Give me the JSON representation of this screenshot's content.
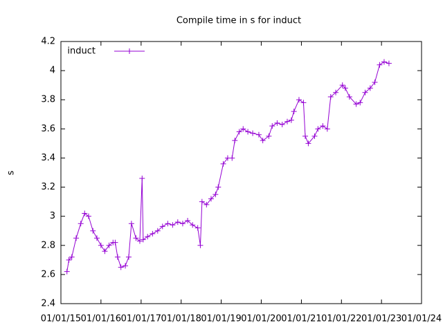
{
  "chart_data": {
    "type": "line",
    "title": "Compile time in s for induct",
    "y_label": "s",
    "x": [
      "2015-02-25",
      "2015-03-15",
      "2015-04-10",
      "2015-05-20",
      "2015-07-01",
      "2015-08-05",
      "2015-09-10",
      "2015-10-20",
      "2015-11-25",
      "2016-01-01",
      "2016-02-05",
      "2016-03-15",
      "2016-04-20",
      "2016-05-10",
      "2016-06-01",
      "2016-07-01",
      "2016-08-10",
      "2016-09-10",
      "2016-10-05",
      "2016-11-15",
      "2016-12-20",
      "2017-01-10",
      "2017-01-20",
      "2017-03-01",
      "2017-04-15",
      "2017-06-01",
      "2017-07-15",
      "2017-09-01",
      "2017-10-15",
      "2017-12-01",
      "2018-01-15",
      "2018-03-01",
      "2018-04-15",
      "2018-06-01",
      "2018-06-25",
      "2018-07-10",
      "2018-08-20",
      "2018-10-01",
      "2018-11-10",
      "2018-12-05",
      "2019-01-20",
      "2019-03-01",
      "2019-04-10",
      "2019-05-05",
      "2019-06-15",
      "2019-07-20",
      "2019-09-01",
      "2019-10-15",
      "2019-12-10",
      "2020-01-15",
      "2020-03-10",
      "2020-04-10",
      "2020-05-25",
      "2020-07-10",
      "2020-08-25",
      "2020-10-01",
      "2020-10-25",
      "2020-12-10",
      "2021-01-20",
      "2021-02-05",
      "2021-03-05",
      "2021-05-01",
      "2021-06-01",
      "2021-07-15",
      "2021-08-25",
      "2021-09-25",
      "2021-11-10",
      "2022-01-10",
      "2022-02-05",
      "2022-03-15",
      "2022-05-15",
      "2022-06-20",
      "2022-08-05",
      "2022-09-20",
      "2022-11-01",
      "2022-12-15",
      "2023-01-25",
      "2023-03-10"
    ],
    "series": [
      {
        "name": "induct",
        "color": "#9400d3",
        "values": [
          2.62,
          2.7,
          2.72,
          2.85,
          2.95,
          3.02,
          3.0,
          2.9,
          2.85,
          2.8,
          2.76,
          2.8,
          2.82,
          2.82,
          2.72,
          2.65,
          2.66,
          2.72,
          2.95,
          2.85,
          2.83,
          3.26,
          2.84,
          2.86,
          2.88,
          2.9,
          2.93,
          2.95,
          2.94,
          2.96,
          2.95,
          2.97,
          2.94,
          2.92,
          2.8,
          3.1,
          3.08,
          3.12,
          3.15,
          3.2,
          3.36,
          3.4,
          3.4,
          3.52,
          3.58,
          3.6,
          3.58,
          3.57,
          3.56,
          3.52,
          3.55,
          3.62,
          3.64,
          3.63,
          3.65,
          3.66,
          3.72,
          3.8,
          3.78,
          3.55,
          3.5,
          3.55,
          3.6,
          3.62,
          3.6,
          3.82,
          3.85,
          3.9,
          3.88,
          3.82,
          3.77,
          3.78,
          3.85,
          3.88,
          3.92,
          4.04,
          4.06,
          4.05
        ]
      }
    ],
    "xlim": [
      "2015-01-01",
      "2024-01-01"
    ],
    "xticks": [
      {
        "value": "2015-01-01",
        "label": "01/01/15"
      },
      {
        "value": "2016-01-01",
        "label": "01/01/16"
      },
      {
        "value": "2017-01-01",
        "label": "01/01/17"
      },
      {
        "value": "2018-01-01",
        "label": "01/01/18"
      },
      {
        "value": "2019-01-01",
        "label": "01/01/19"
      },
      {
        "value": "2020-01-01",
        "label": "01/01/20"
      },
      {
        "value": "2021-01-01",
        "label": "01/01/21"
      },
      {
        "value": "2022-01-01",
        "label": "01/01/22"
      },
      {
        "value": "2023-01-01",
        "label": "01/01/23"
      },
      {
        "value": "2024-01-01",
        "label": "01/01/24"
      }
    ],
    "ylim": [
      2.4,
      4.2
    ],
    "yticks": [
      2.4,
      2.6,
      2.8,
      3,
      3.2,
      3.4,
      3.6,
      3.8,
      4,
      4.2
    ],
    "legend": "top-left"
  }
}
